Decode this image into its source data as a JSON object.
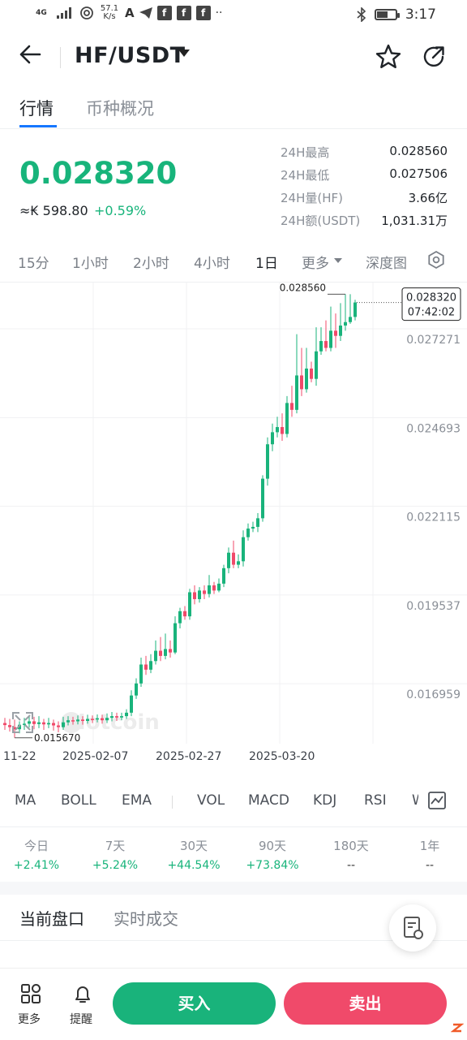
{
  "status_bar": {
    "net_speed": "57.1",
    "net_unit": "K/s",
    "time": "3:17",
    "signal_label": "4G"
  },
  "header": {
    "pair": "HF/USDT"
  },
  "tabs": [
    "行情",
    "币种概况"
  ],
  "price": {
    "last": "0.028320",
    "cny": "≈₭ 598.80",
    "change": "+0.59%",
    "up_color": "#18b47b"
  },
  "stats": [
    {
      "label": "24H最高",
      "value": "0.028560"
    },
    {
      "label": "24H最低",
      "value": "0.027506"
    },
    {
      "label": "24H量(HF)",
      "value": "3.66亿"
    },
    {
      "label": "24H额(USDT)",
      "value": "1,031.31万"
    }
  ],
  "intervals": [
    "15分",
    "1小时",
    "2小时",
    "4小时",
    "1日",
    "更多",
    "深度图"
  ],
  "active_interval": "1日",
  "chart_data": {
    "type": "candlestick",
    "y_ticks": [
      "0.027271",
      "0.024693",
      "0.022115",
      "0.019537",
      "0.016959"
    ],
    "x_ticks": [
      "11-22",
      "2025-02-07",
      "2025-02-27",
      "2025-03-20"
    ],
    "ylim": [
      0.0155,
      0.0289
    ],
    "high_label": "0.028560",
    "low_label": "0.015670",
    "current_price": "0.028320",
    "current_time": "07:42:02",
    "watermark": "Hotcoin",
    "up_color": "#19b37b",
    "down_color": "#f04a6a",
    "candles": [
      [
        0.0161,
        0.01604,
        0.01625,
        0.0159
      ],
      [
        0.01604,
        0.01598,
        0.01622,
        0.01585
      ],
      [
        0.01598,
        0.01592,
        0.0162,
        0.01567
      ],
      [
        0.01592,
        0.01605,
        0.01615,
        0.0158
      ],
      [
        0.01605,
        0.01608,
        0.01625,
        0.0159
      ],
      [
        0.01608,
        0.01615,
        0.0163,
        0.01597
      ],
      [
        0.01615,
        0.01607,
        0.01628,
        0.01592
      ],
      [
        0.01607,
        0.01612,
        0.0163,
        0.01595
      ],
      [
        0.01612,
        0.01606,
        0.01622,
        0.0159
      ],
      [
        0.01606,
        0.0161,
        0.01625,
        0.01595
      ],
      [
        0.0161,
        0.01603,
        0.0162,
        0.01588
      ],
      [
        0.01603,
        0.01598,
        0.01615,
        0.01583
      ],
      [
        0.01598,
        0.01612,
        0.01628,
        0.0159
      ],
      [
        0.01612,
        0.01618,
        0.0163,
        0.01603
      ],
      [
        0.01618,
        0.01615,
        0.01628,
        0.01605
      ],
      [
        0.01615,
        0.0162,
        0.01632,
        0.01606
      ],
      [
        0.0162,
        0.01616,
        0.0163,
        0.01605
      ],
      [
        0.01616,
        0.01622,
        0.01634,
        0.01608
      ],
      [
        0.01622,
        0.0162,
        0.01632,
        0.0161
      ],
      [
        0.0162,
        0.01624,
        0.01635,
        0.01612
      ],
      [
        0.01624,
        0.01618,
        0.01634,
        0.01608
      ],
      [
        0.01618,
        0.01625,
        0.01638,
        0.0161
      ],
      [
        0.01625,
        0.0163,
        0.01642,
        0.01615
      ],
      [
        0.0163,
        0.01626,
        0.0164,
        0.01616
      ],
      [
        0.01626,
        0.0163,
        0.0164,
        0.01618
      ],
      [
        0.0163,
        0.0164,
        0.0165,
        0.01622
      ],
      [
        0.0164,
        0.0169,
        0.01705,
        0.0163
      ],
      [
        0.0169,
        0.01725,
        0.0174,
        0.0168
      ],
      [
        0.01725,
        0.0178,
        0.018,
        0.01715
      ],
      [
        0.0178,
        0.01765,
        0.01805,
        0.0175
      ],
      [
        0.01765,
        0.0179,
        0.0181,
        0.01755
      ],
      [
        0.0179,
        0.0182,
        0.0185,
        0.0178
      ],
      [
        0.0182,
        0.01805,
        0.0186,
        0.0179
      ],
      [
        0.01805,
        0.01825,
        0.0187,
        0.01795
      ],
      [
        0.01825,
        0.01815,
        0.0185,
        0.018
      ],
      [
        0.01815,
        0.019,
        0.0192,
        0.0181
      ],
      [
        0.019,
        0.01935,
        0.01945,
        0.01885
      ],
      [
        0.01935,
        0.0192,
        0.0195,
        0.0191
      ],
      [
        0.0192,
        0.0199,
        0.02,
        0.0191
      ],
      [
        0.0199,
        0.0197,
        0.0201,
        0.01955
      ],
      [
        0.0197,
        0.01995,
        0.02005,
        0.0196
      ],
      [
        0.01995,
        0.01985,
        0.0201,
        0.0197
      ],
      [
        0.01985,
        0.0201,
        0.0204,
        0.01975
      ],
      [
        0.0201,
        0.01995,
        0.0202,
        0.01985
      ],
      [
        0.01995,
        0.02015,
        0.0203,
        0.0199
      ],
      [
        0.02015,
        0.0206,
        0.0207,
        0.02005
      ],
      [
        0.0206,
        0.02105,
        0.0212,
        0.02045
      ],
      [
        0.02105,
        0.0207,
        0.0214,
        0.0206
      ],
      [
        0.0207,
        0.0208,
        0.021,
        0.0206
      ],
      [
        0.0208,
        0.0215,
        0.0217,
        0.02065
      ],
      [
        0.0215,
        0.02175,
        0.0219,
        0.0214
      ],
      [
        0.02175,
        0.0218,
        0.02195,
        0.02165
      ],
      [
        0.0218,
        0.02205,
        0.0222,
        0.02165
      ],
      [
        0.02205,
        0.0232,
        0.0233,
        0.02195
      ],
      [
        0.0232,
        0.0242,
        0.0244,
        0.023
      ],
      [
        0.0242,
        0.02455,
        0.0248,
        0.024
      ],
      [
        0.02455,
        0.0247,
        0.025,
        0.0244
      ],
      [
        0.0247,
        0.0245,
        0.0251,
        0.0243
      ],
      [
        0.0245,
        0.0254,
        0.0256,
        0.0244
      ],
      [
        0.0254,
        0.0252,
        0.0259,
        0.025
      ],
      [
        0.0252,
        0.0262,
        0.0274,
        0.0251
      ],
      [
        0.0262,
        0.0258,
        0.027,
        0.0256
      ],
      [
        0.0258,
        0.0264,
        0.027,
        0.0257
      ],
      [
        0.0264,
        0.0261,
        0.0266,
        0.026
      ],
      [
        0.0261,
        0.0269,
        0.0276,
        0.0259
      ],
      [
        0.0269,
        0.0272,
        0.0276,
        0.0268
      ],
      [
        0.0272,
        0.027,
        0.0278,
        0.0269
      ],
      [
        0.027,
        0.0275,
        0.0282,
        0.0269
      ],
      [
        0.0275,
        0.02735,
        0.028,
        0.027
      ],
      [
        0.02735,
        0.02765,
        0.0283,
        0.0272
      ],
      [
        0.02765,
        0.02775,
        0.02856,
        0.0275
      ],
      [
        0.02775,
        0.0279,
        0.02856,
        0.0277
      ],
      [
        0.0279,
        0.02832,
        0.0284,
        0.0278
      ]
    ]
  },
  "indicators": [
    "MA",
    "BOLL",
    "EMA",
    "VOL",
    "MACD",
    "KDJ",
    "RSI",
    "W"
  ],
  "periods": [
    {
      "label": "今日",
      "value": "+2.41%"
    },
    {
      "label": "7天",
      "value": "+5.24%"
    },
    {
      "label": "30天",
      "value": "+44.54%"
    },
    {
      "label": "90天",
      "value": "+73.84%"
    },
    {
      "label": "180天",
      "value": "--"
    },
    {
      "label": "1年",
      "value": "--"
    }
  ],
  "sections": [
    "当前盘口",
    "实时成交"
  ],
  "bottom": {
    "more_label": "更多",
    "alert_label": "提醒",
    "buy_label": "买入",
    "sell_label": "卖出"
  }
}
